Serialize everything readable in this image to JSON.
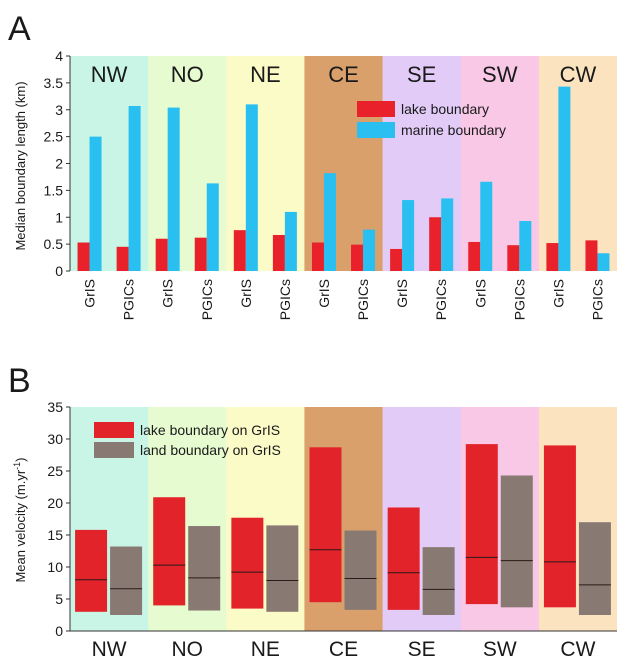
{
  "chart_data": [
    {
      "panel_label": "A",
      "type": "bar",
      "ylabel": "Median boundary length (km)",
      "ylim": [
        0,
        4
      ],
      "yticks": [
        "0",
        "0.5",
        "1",
        "1.5",
        "2",
        "2.5",
        "3",
        "3.5",
        "4"
      ],
      "regions": [
        {
          "name": "NW",
          "color": "#c9f5e6"
        },
        {
          "name": "NO",
          "color": "#e6fbcf"
        },
        {
          "name": "NE",
          "color": "#fbfbc8"
        },
        {
          "name": "CE",
          "color": "#d9a06b"
        },
        {
          "name": "SE",
          "color": "#e2cbf7"
        },
        {
          "name": "SW",
          "color": "#f8c8e6"
        },
        {
          "name": "CW",
          "color": "#fbe3bf"
        }
      ],
      "groups": [
        "GrIS",
        "PGICs"
      ],
      "legend": [
        "lake boundary",
        "marine boundary"
      ],
      "series": [
        {
          "name": "lake boundary",
          "color": "#e8212a",
          "values": [
            0.53,
            0.45,
            0.6,
            0.62,
            0.76,
            0.67,
            0.53,
            0.49,
            0.41,
            1.0,
            0.54,
            0.48,
            0.52,
            0.57
          ]
        },
        {
          "name": "marine boundary",
          "color": "#29bff0",
          "values": [
            2.5,
            3.07,
            3.04,
            1.63,
            3.1,
            1.1,
            1.82,
            0.77,
            1.32,
            1.35,
            1.66,
            0.93,
            3.43,
            0.33
          ]
        }
      ],
      "categories": [
        "GrIS",
        "PGICs",
        "GrIS",
        "PGICs",
        "GrIS",
        "PGICs",
        "GrIS",
        "PGICs",
        "GrIS",
        "PGICs",
        "GrIS",
        "PGICs",
        "GrIS",
        "PGICs"
      ]
    },
    {
      "panel_label": "B",
      "type": "box",
      "ylabel": "Mean velocity (m.yr",
      "ylabel_sup": "-1",
      "ylabel_end": ")",
      "ylim": [
        0,
        35
      ],
      "yticks": [
        "0",
        "5",
        "10",
        "15",
        "20",
        "25",
        "30",
        "35"
      ],
      "categories": [
        "NW",
        "NO",
        "NE",
        "CE",
        "SE",
        "SW",
        "CW"
      ],
      "legend": [
        "lake boundary on GrIS",
        "land boundary on GrIS"
      ],
      "series": [
        {
          "name": "lake boundary on GrIS",
          "color": "#e2232a",
          "values": [
            {
              "low": 3.0,
              "median": 8.0,
              "high": 15.8
            },
            {
              "low": 4.0,
              "median": 10.3,
              "high": 20.9
            },
            {
              "low": 3.5,
              "median": 9.2,
              "high": 17.7
            },
            {
              "low": 4.5,
              "median": 12.7,
              "high": 28.7
            },
            {
              "low": 3.3,
              "median": 9.1,
              "high": 19.3
            },
            {
              "low": 4.2,
              "median": 11.5,
              "high": 29.2
            },
            {
              "low": 3.7,
              "median": 10.8,
              "high": 29.0
            }
          ]
        },
        {
          "name": "land boundary on GrIS",
          "color": "#887a72",
          "values": [
            {
              "low": 2.5,
              "median": 6.6,
              "high": 13.2
            },
            {
              "low": 3.2,
              "median": 8.3,
              "high": 16.4
            },
            {
              "low": 3.0,
              "median": 7.9,
              "high": 16.5
            },
            {
              "low": 3.3,
              "median": 8.2,
              "high": 15.7
            },
            {
              "low": 2.5,
              "median": 6.5,
              "high": 13.1
            },
            {
              "low": 3.7,
              "median": 11.0,
              "high": 24.3
            },
            {
              "low": 2.5,
              "median": 7.2,
              "high": 17.0
            }
          ]
        }
      ]
    }
  ]
}
